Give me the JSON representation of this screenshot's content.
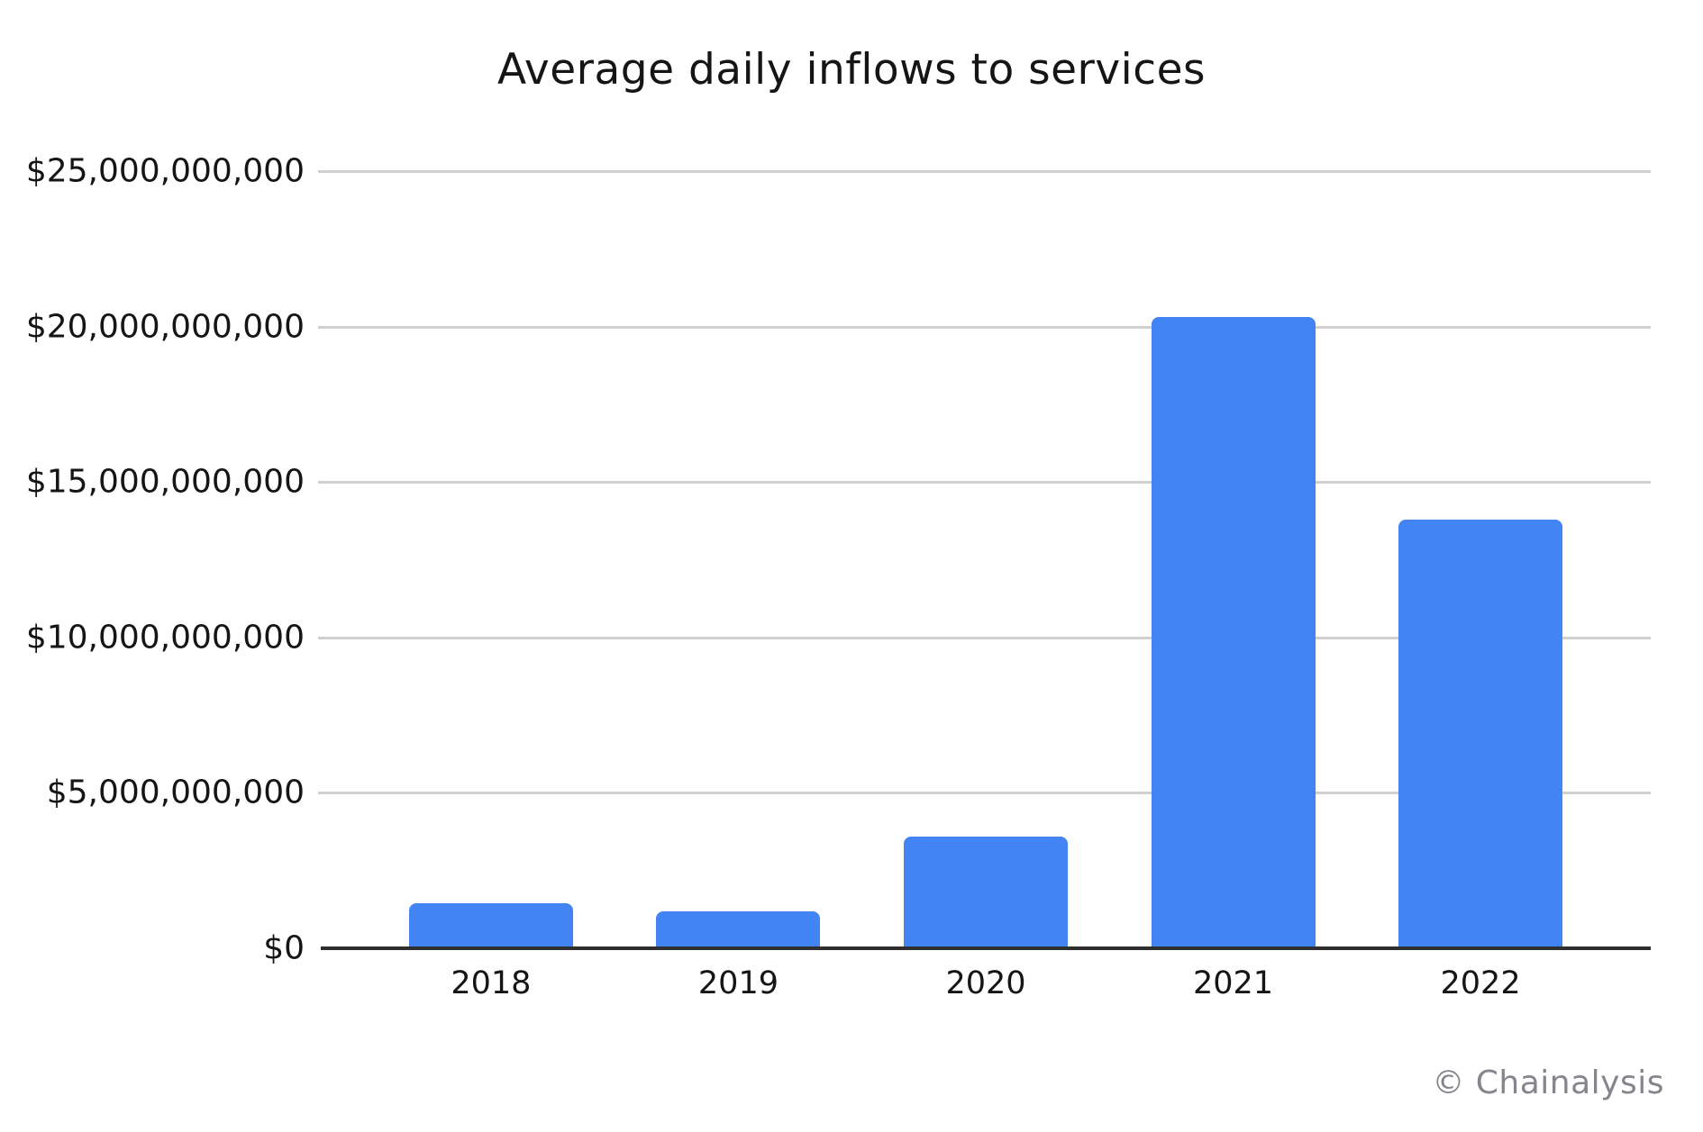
{
  "title": "Average daily inflows to services",
  "watermark": "© Chainalysis",
  "colors": {
    "background": "#ffffff",
    "bar": "#4284f3",
    "gridline": "#d0d0d0",
    "axis": "#2e2e2e",
    "text": "#151518",
    "watermark_text": "#85858d"
  },
  "chart_data": {
    "type": "bar",
    "title": "Average daily inflows to services",
    "categories": [
      "2018",
      "2019",
      "2020",
      "2021",
      "2022"
    ],
    "values": [
      1450000000,
      1200000000,
      3600000000,
      20300000000,
      13800000000
    ],
    "xlabel": "",
    "ylabel": "",
    "ylim": [
      0,
      25000000000
    ],
    "yticks": [
      {
        "value": 0,
        "label": "$0"
      },
      {
        "value": 5000000000,
        "label": "$5,000,000,000"
      },
      {
        "value": 10000000000,
        "label": "$10,000,000,000"
      },
      {
        "value": 15000000000,
        "label": "$15,000,000,000"
      },
      {
        "value": 20000000000,
        "label": "$20,000,000,000"
      },
      {
        "value": 25000000000,
        "label": "$25,000,000,000"
      }
    ],
    "grid": "horizontal",
    "legend": false
  }
}
